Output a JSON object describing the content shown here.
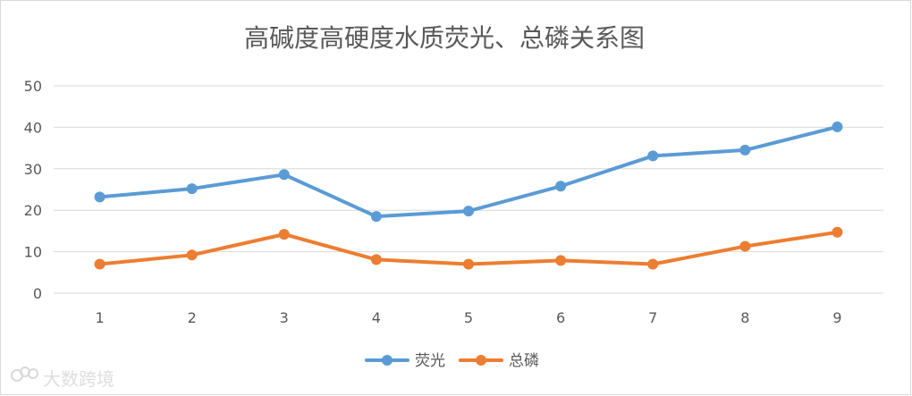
{
  "chart_data": {
    "type": "line",
    "title": "高碱度高硬度水质荧光、总磷关系图",
    "categories": [
      "1",
      "2",
      "3",
      "4",
      "5",
      "6",
      "7",
      "8",
      "9"
    ],
    "ylim": [
      0,
      50
    ],
    "yticks": [
      0,
      10,
      20,
      30,
      40,
      50
    ],
    "grid": true,
    "legend_position": "bottom",
    "series": [
      {
        "name": "荧光",
        "color": "#5B9BD5",
        "values": [
          23.2,
          25.2,
          28.6,
          18.5,
          19.8,
          25.8,
          33.1,
          34.5,
          40.1
        ]
      },
      {
        "name": "总磷",
        "color": "#ED7D31",
        "values": [
          7.0,
          9.2,
          14.2,
          8.1,
          7.0,
          7.9,
          7.0,
          11.3,
          14.7
        ]
      }
    ]
  },
  "watermark": {
    "text": "大数跨境"
  },
  "colors": {
    "grid": "#D9D9D9",
    "axis_text": "#595959",
    "title": "#595959",
    "frame": "#D9D9D9"
  }
}
